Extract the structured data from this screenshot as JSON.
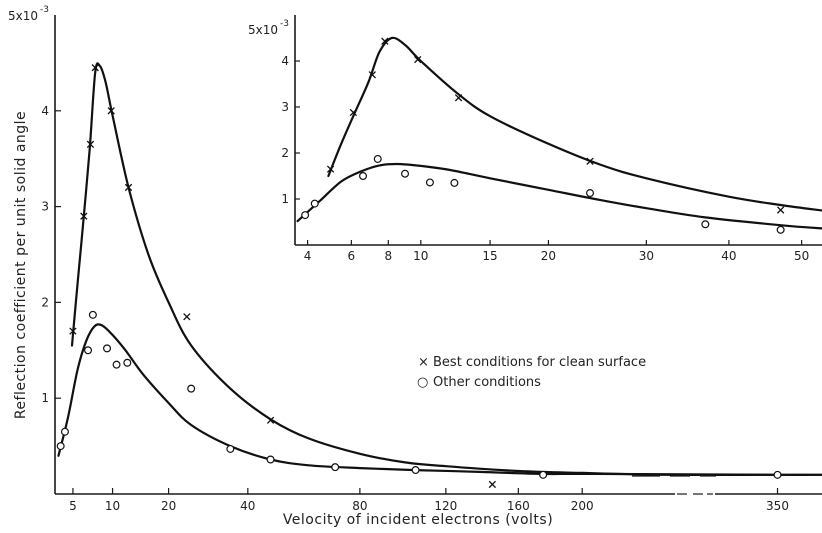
{
  "chart_data": [
    {
      "type": "line",
      "panel": "main",
      "xlabel": "Velocity of incident electrons (volts)",
      "ylabel": "Reflection coefficient per unit solid angle",
      "x_scale": "sqrt",
      "xlim": [
        3.3,
        390
      ],
      "ylim": [
        0,
        5
      ],
      "x_ticks": [
        5,
        10,
        20,
        40,
        80,
        120,
        160,
        200,
        350
      ],
      "y_ticks": [
        1,
        2,
        3,
        4
      ],
      "y_top_label": "5x10",
      "y_top_exp": "-3",
      "axis_break": true,
      "legend": {
        "position": "center-right",
        "entries": [
          {
            "marker": "×",
            "text": "Best conditions for clean surface"
          },
          {
            "marker": "○",
            "text": "Other conditions"
          }
        ]
      },
      "series": [
        {
          "name": "Best conditions for clean surface",
          "marker": "x",
          "points": [
            [
              5,
              1.7
            ],
            [
              6.2,
              2.9
            ],
            [
              7,
              3.65
            ],
            [
              7.6,
              4.45
            ],
            [
              9.8,
              4.0
            ],
            [
              12.5,
              3.2
            ],
            [
              24,
              1.85
            ],
            [
              47,
              0.77
            ],
            [
              145,
              0.1
            ]
          ],
          "curve": [
            [
              4.9,
              1.55
            ],
            [
              5.5,
              2.2
            ],
            [
              6.2,
              2.9
            ],
            [
              6.9,
              3.6
            ],
            [
              7.6,
              4.4
            ],
            [
              8.2,
              4.47
            ],
            [
              9,
              4.3
            ],
            [
              10,
              3.95
            ],
            [
              12.5,
              3.2
            ],
            [
              16,
              2.5
            ],
            [
              20,
              2.0
            ],
            [
              25,
              1.55
            ],
            [
              35,
              1.1
            ],
            [
              47,
              0.78
            ],
            [
              60,
              0.58
            ],
            [
              80,
              0.42
            ],
            [
              100,
              0.33
            ],
            [
              120,
              0.29
            ],
            [
              160,
              0.24
            ],
            [
              200,
              0.22
            ],
            [
              260,
              0.2
            ],
            [
              350,
              0.2
            ],
            [
              390,
              0.2
            ]
          ]
        },
        {
          "name": "Other conditions",
          "marker": "o",
          "points": [
            [
              3.8,
              0.5
            ],
            [
              4.2,
              0.65
            ],
            [
              6.7,
              1.5
            ],
            [
              7.3,
              1.87
            ],
            [
              9.2,
              1.52
            ],
            [
              10.6,
              1.35
            ],
            [
              12.3,
              1.37
            ],
            [
              25,
              1.1
            ],
            [
              35,
              0.47
            ],
            [
              47,
              0.36
            ],
            [
              70,
              0.28
            ],
            [
              105,
              0.25
            ],
            [
              175,
              0.2
            ],
            [
              350,
              0.2
            ]
          ]
        }
      ],
      "curve_other": [
        [
          3.6,
          0.4
        ],
        [
          4.5,
          0.8
        ],
        [
          5.5,
          1.3
        ],
        [
          6.5,
          1.6
        ],
        [
          7.5,
          1.75
        ],
        [
          8.5,
          1.76
        ],
        [
          10,
          1.66
        ],
        [
          12,
          1.5
        ],
        [
          15,
          1.25
        ],
        [
          20,
          0.95
        ],
        [
          25,
          0.72
        ],
        [
          35,
          0.5
        ],
        [
          47,
          0.36
        ],
        [
          60,
          0.3
        ],
        [
          80,
          0.27
        ],
        [
          105,
          0.25
        ],
        [
          140,
          0.23
        ],
        [
          175,
          0.21
        ],
        [
          210,
          0.21
        ],
        [
          350,
          0.2
        ],
        [
          390,
          0.2
        ]
      ]
    },
    {
      "type": "line",
      "panel": "inset",
      "xlim": [
        3.5,
        53
      ],
      "ylim": [
        0,
        5
      ],
      "x_scale": "sqrt",
      "x_ticks": [
        4,
        6,
        8,
        10,
        15,
        20,
        30,
        40,
        50
      ],
      "y_ticks": [
        1,
        2,
        3,
        4
      ],
      "y_top_label": "5x10",
      "y_top_exp": "-3",
      "series": [
        {
          "name": "Best conditions for clean surface",
          "marker": "x",
          "points": [
            [
              5,
              1.65
            ],
            [
              6.1,
              2.88
            ],
            [
              7.1,
              3.7
            ],
            [
              7.8,
              4.43
            ],
            [
              9.8,
              4.03
            ],
            [
              12.6,
              3.2
            ],
            [
              24,
              1.82
            ],
            [
              47,
              0.76
            ]
          ],
          "curve": [
            [
              4.9,
              1.5
            ],
            [
              5.5,
              2.2
            ],
            [
              6.2,
              2.9
            ],
            [
              6.9,
              3.55
            ],
            [
              7.5,
              4.2
            ],
            [
              8.2,
              4.5
            ],
            [
              9,
              4.35
            ],
            [
              10,
              4.0
            ],
            [
              12.5,
              3.3
            ],
            [
              15,
              2.8
            ],
            [
              20,
              2.2
            ],
            [
              25,
              1.75
            ],
            [
              30,
              1.45
            ],
            [
              40,
              1.05
            ],
            [
              47,
              0.87
            ],
            [
              53,
              0.75
            ]
          ]
        },
        {
          "name": "Other conditions",
          "marker": "o",
          "points": [
            [
              3.9,
              0.65
            ],
            [
              4.3,
              0.9
            ],
            [
              6.6,
              1.5
            ],
            [
              7.4,
              1.87
            ],
            [
              9,
              1.55
            ],
            [
              10.6,
              1.36
            ],
            [
              12.3,
              1.35
            ],
            [
              24,
              1.13
            ],
            [
              37,
              0.45
            ],
            [
              47,
              0.33
            ]
          ],
          "curve": [
            [
              3.6,
              0.52
            ],
            [
              4.5,
              0.95
            ],
            [
              5.5,
              1.38
            ],
            [
              6.5,
              1.6
            ],
            [
              7.5,
              1.73
            ],
            [
              8.5,
              1.76
            ],
            [
              10,
              1.72
            ],
            [
              12,
              1.63
            ],
            [
              15,
              1.45
            ],
            [
              20,
              1.2
            ],
            [
              25,
              0.98
            ],
            [
              30,
              0.8
            ],
            [
              37,
              0.6
            ],
            [
              47,
              0.43
            ],
            [
              53,
              0.36
            ]
          ]
        }
      ]
    }
  ]
}
